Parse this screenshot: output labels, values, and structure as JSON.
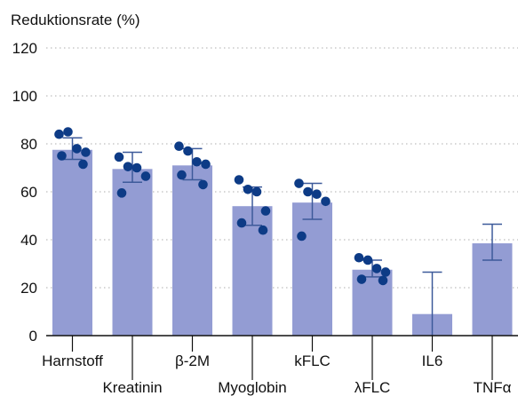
{
  "chart_data": {
    "type": "bar",
    "ylabel": "Reduktionsrate (%)",
    "xlabel": "",
    "ylim": [
      0,
      120
    ],
    "yticks": [
      0,
      20,
      40,
      60,
      80,
      100,
      120
    ],
    "categories": [
      "Harnstoff",
      "Kreatinin",
      "β-2M",
      "Myoglobin",
      "kFLC",
      "λFLC",
      "IL6",
      "TNFα"
    ],
    "values": [
      77.5,
      69.5,
      71,
      54,
      55.5,
      27.5,
      9,
      38.5
    ],
    "error": [
      {
        "low": 73.5,
        "high": 82.5
      },
      {
        "low": 64,
        "high": 76.5
      },
      {
        "low": 65,
        "high": 78
      },
      {
        "low": 46,
        "high": 62
      },
      {
        "low": 48.5,
        "high": 63.5
      },
      {
        "low": 24.5,
        "high": 31.5
      },
      {
        "low": 0,
        "high": 26.5
      },
      {
        "low": 31.5,
        "high": 46.5
      }
    ],
    "points": [
      [
        84,
        85,
        78,
        76.5,
        75,
        71.5
      ],
      [
        74.5,
        70.5,
        70,
        66.5,
        59.5
      ],
      [
        79,
        77,
        72.5,
        71.5,
        67,
        63
      ],
      [
        65,
        61,
        60,
        52,
        47,
        44
      ],
      [
        63.5,
        60,
        59,
        56,
        41.5
      ],
      [
        32.5,
        31.5,
        28,
        26.5,
        23.5,
        23
      ],
      [],
      []
    ],
    "colors": {
      "bar": "#939cd3",
      "point": "#0d3b86",
      "error": "#3d5a9a",
      "axis": "#111111",
      "grid": "#c9c9c9"
    },
    "grid": "horizontal",
    "legend": "none"
  }
}
